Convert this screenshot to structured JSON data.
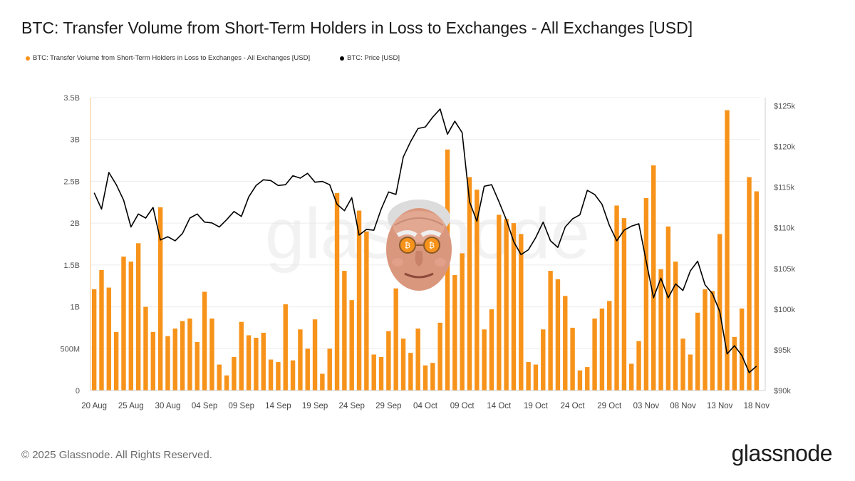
{
  "page": {
    "title": "BTC: Transfer Volume from Short-Term Holders in Loss to Exchanges - All Exchanges [USD]",
    "footer": "© 2025 Glassnode. All Rights Reserved.",
    "brand": "glassnode",
    "watermark": "glassnode"
  },
  "colors": {
    "bar": "#f7931a",
    "price": "#000000",
    "grid": "#ececec"
  },
  "chart_data": {
    "type": "bar",
    "title": "BTC: Transfer Volume from Short-Term Holders in Loss to Exchanges - All Exchanges [USD]",
    "legend_placement": "top-left",
    "grid": true,
    "x_tick_labels": [
      "20 Aug",
      "25 Aug",
      "30 Aug",
      "04 Sep",
      "09 Sep",
      "14 Sep",
      "19 Sep",
      "24 Sep",
      "29 Sep",
      "04 Oct",
      "09 Oct",
      "14 Oct",
      "19 Oct",
      "24 Oct",
      "29 Oct",
      "03 Nov",
      "08 Nov",
      "13 Nov",
      "18 Nov"
    ],
    "y_left": {
      "ticks": [
        0,
        500000000,
        1000000000,
        1500000000,
        2000000000,
        2500000000,
        3000000000,
        3500000000
      ],
      "tick_labels": [
        "0",
        "500M",
        "1B",
        "1.5B",
        "2B",
        "2.5B",
        "3B",
        "3.5B"
      ],
      "range": [
        0,
        3500000000
      ]
    },
    "y_right": {
      "ticks": [
        90000,
        95000,
        100000,
        105000,
        110000,
        115000,
        120000,
        125000
      ],
      "tick_labels": [
        "$90k",
        "$95k",
        "$100k",
        "$105k",
        "$110k",
        "$115k",
        "$120k",
        "$125k"
      ],
      "range": [
        90000,
        126000
      ]
    },
    "series": [
      {
        "name": "BTC: Transfer Volume from Short-Term Holders in Loss to Exchanges - All Exchanges [USD]",
        "type": "bar",
        "axis": "left",
        "values": [
          1.21,
          1.44,
          1.23,
          0.7,
          1.6,
          1.54,
          1.76,
          1.0,
          0.7,
          2.19,
          0.65,
          0.74,
          0.83,
          0.86,
          0.58,
          1.18,
          0.86,
          0.31,
          0.18,
          0.4,
          0.82,
          0.66,
          0.63,
          0.69,
          0.37,
          0.34,
          1.03,
          0.36,
          0.73,
          0.5,
          0.85,
          0.2,
          0.5,
          2.36,
          1.43,
          1.08,
          2.15,
          1.9,
          0.43,
          0.4,
          0.71,
          1.22,
          0.62,
          0.45,
          0.74,
          0.3,
          0.33,
          0.81,
          2.88,
          1.38,
          1.64,
          2.55,
          2.4,
          0.73,
          0.97,
          2.1,
          2.05,
          2.0,
          1.87,
          0.34,
          0.31,
          0.73,
          1.43,
          1.33,
          1.13,
          0.75,
          0.24,
          0.28,
          0.86,
          0.98,
          1.07,
          2.21,
          2.06,
          0.32,
          0.59,
          2.3,
          2.69,
          1.45,
          1.96,
          1.54,
          0.62,
          0.43,
          0.93,
          1.21,
          1.19,
          1.87,
          3.35,
          0.64,
          0.98,
          2.55,
          2.38
        ]
      },
      {
        "name": "BTC: Price [USD]",
        "type": "line",
        "axis": "right",
        "values": [
          114300,
          112300,
          116800,
          115300,
          113400,
          110100,
          111700,
          111200,
          112500,
          108500,
          108900,
          108400,
          109300,
          111200,
          111700,
          110700,
          110600,
          110100,
          111000,
          112000,
          111400,
          113800,
          115200,
          115900,
          115800,
          115200,
          115300,
          116400,
          116100,
          116700,
          115600,
          115700,
          115300,
          112900,
          112100,
          113700,
          109100,
          109800,
          109700,
          112300,
          114400,
          114100,
          118700,
          120600,
          122200,
          122400,
          123600,
          124600,
          121500,
          123100,
          121700,
          113200,
          110800,
          115100,
          115300,
          113200,
          111000,
          108300,
          106700,
          107300,
          108800,
          110700,
          108400,
          107600,
          110100,
          111100,
          111600,
          114600,
          114100,
          112900,
          110300,
          108400,
          109700,
          110200,
          110500,
          105900,
          101400,
          103800,
          101400,
          103100,
          102300,
          104700,
          105900,
          103000,
          101900,
          99700,
          94500,
          95500,
          94300,
          92200,
          93000
        ]
      }
    ]
  }
}
